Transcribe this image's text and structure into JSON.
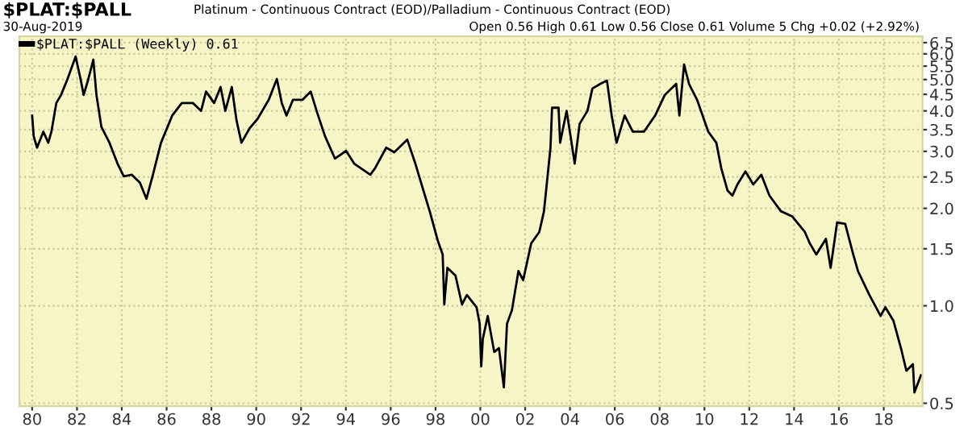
{
  "chart_data": {
    "type": "line",
    "title": "$PLAT:$PALL",
    "subtitle": "Platinum - Continuous Contract (EOD)/Palladium - Continuous Contract (EOD)",
    "annotations": [
      "30-Aug-2019",
      "Open 0.56 High 0.61 Low 0.56 Close 0.61 Volume 5 Chg +0.02 (+2.92%)"
    ],
    "log": "y",
    "grid": true,
    "legend": "top left",
    "marker": "none",
    "line_style": "solid",
    "xlim": [
      1979.43,
      2019.73
    ],
    "xticks": [
      {
        "value": 1980,
        "label": "80"
      },
      {
        "value": 1982,
        "label": "82"
      },
      {
        "value": 1984,
        "label": "84"
      },
      {
        "value": 1986,
        "label": "86"
      },
      {
        "value": 1988,
        "label": "88"
      },
      {
        "value": 1990,
        "label": "90"
      },
      {
        "value": 1992,
        "label": "92"
      },
      {
        "value": 1994,
        "label": "94"
      },
      {
        "value": 1996,
        "label": "96"
      },
      {
        "value": 1998,
        "label": "98"
      },
      {
        "value": 2000,
        "label": "00"
      },
      {
        "value": 2002,
        "label": "02"
      },
      {
        "value": 2004,
        "label": "04"
      },
      {
        "value": 2006,
        "label": "06"
      },
      {
        "value": 2008,
        "label": "08"
      },
      {
        "value": 2010,
        "label": "10"
      },
      {
        "value": 2012,
        "label": "12"
      },
      {
        "value": 2014,
        "label": "14"
      },
      {
        "value": 2016,
        "label": "16"
      },
      {
        "value": 2018,
        "label": "18"
      }
    ],
    "ylim": [
      0.49,
      6.8
    ],
    "yticks": [
      0.5,
      {
        "value": 1,
        "label": "1.0"
      },
      1.5,
      {
        "value": 2,
        "label": "2.0"
      },
      2.5,
      {
        "value": 3,
        "label": "3.0"
      },
      3.5,
      {
        "value": 4,
        "label": "4.0"
      },
      4.5,
      {
        "value": 5,
        "label": "5.0"
      },
      5.5,
      {
        "value": 6,
        "label": "6.0"
      },
      6.5
    ],
    "series": [
      {
        "name": "$PLAT:$PALL (Weekly) 0.61",
        "color": "#000000",
        "x": [
          1980.0,
          1980.07,
          1980.22,
          1980.5,
          1980.72,
          1980.86,
          1981.08,
          1981.29,
          1981.58,
          1981.94,
          1982.16,
          1982.3,
          1982.51,
          1982.73,
          1982.87,
          1983.09,
          1983.45,
          1983.81,
          1984.09,
          1984.45,
          1984.81,
          1985.1,
          1985.39,
          1985.75,
          1986.25,
          1986.68,
          1987.18,
          1987.54,
          1987.76,
          1988.12,
          1988.41,
          1988.62,
          1988.91,
          1989.12,
          1989.34,
          1989.7,
          1990.06,
          1990.56,
          1990.92,
          1991.14,
          1991.35,
          1991.64,
          1992.07,
          1992.43,
          1992.72,
          1993.07,
          1993.51,
          1994.01,
          1994.37,
          1995.09,
          1995.3,
          1995.8,
          1996.16,
          1996.74,
          1997.1,
          1997.46,
          1997.74,
          1998.1,
          1998.32,
          1998.39,
          1998.53,
          1998.89,
          1999.18,
          1999.4,
          1999.83,
          1999.97,
          2000.04,
          2000.11,
          2000.33,
          2000.62,
          2000.83,
          2001.05,
          2001.19,
          2001.41,
          2001.7,
          2001.91,
          2002.27,
          2002.63,
          2002.84,
          2003.13,
          2003.2,
          2003.49,
          2003.56,
          2003.85,
          2004.07,
          2004.21,
          2004.43,
          2004.78,
          2005.0,
          2005.36,
          2005.65,
          2005.86,
          2006.08,
          2006.44,
          2006.8,
          2007.3,
          2007.8,
          2008.23,
          2008.74,
          2008.88,
          2009.09,
          2009.31,
          2009.67,
          2010.17,
          2010.53,
          2010.75,
          2011.03,
          2011.25,
          2011.47,
          2011.83,
          2012.18,
          2012.54,
          2012.9,
          2013.41,
          2013.91,
          2014.48,
          2014.7,
          2014.99,
          2015.42,
          2015.63,
          2015.92,
          2016.28,
          2016.64,
          2016.85,
          2017.36,
          2017.86,
          2018.07,
          2018.43,
          2018.79,
          2019.01,
          2019.3,
          2019.37,
          2019.66
        ],
        "values": [
          3.87,
          3.34,
          3.08,
          3.45,
          3.19,
          3.45,
          4.23,
          4.48,
          5.02,
          5.89,
          5.02,
          4.48,
          5.02,
          5.76,
          4.48,
          3.57,
          3.19,
          2.75,
          2.51,
          2.54,
          2.4,
          2.14,
          2.54,
          3.19,
          3.87,
          4.23,
          4.23,
          4.0,
          4.59,
          4.23,
          4.74,
          4.0,
          4.74,
          3.74,
          3.19,
          3.53,
          3.78,
          4.33,
          5.02,
          4.23,
          3.87,
          4.33,
          4.33,
          4.59,
          3.95,
          3.34,
          2.85,
          3.01,
          2.75,
          2.54,
          2.66,
          3.08,
          2.98,
          3.26,
          2.75,
          2.27,
          1.96,
          1.59,
          1.44,
          1.01,
          1.31,
          1.24,
          1.01,
          1.08,
          0.99,
          0.88,
          0.65,
          0.79,
          0.93,
          0.72,
          0.74,
          0.56,
          0.88,
          0.97,
          1.28,
          1.2,
          1.56,
          1.69,
          1.96,
          3.08,
          4.09,
          4.09,
          3.19,
          4.0,
          3.19,
          2.75,
          3.65,
          4.0,
          4.69,
          4.85,
          4.96,
          3.87,
          3.19,
          3.87,
          3.45,
          3.45,
          3.87,
          4.48,
          4.85,
          3.87,
          5.56,
          4.85,
          4.33,
          3.45,
          3.19,
          2.66,
          2.27,
          2.19,
          2.37,
          2.6,
          2.37,
          2.54,
          2.19,
          1.96,
          1.89,
          1.69,
          1.56,
          1.44,
          1.61,
          1.31,
          1.81,
          1.79,
          1.44,
          1.28,
          1.08,
          0.93,
          0.99,
          0.9,
          0.73,
          0.63,
          0.66,
          0.54,
          0.61
        ]
      }
    ]
  }
}
